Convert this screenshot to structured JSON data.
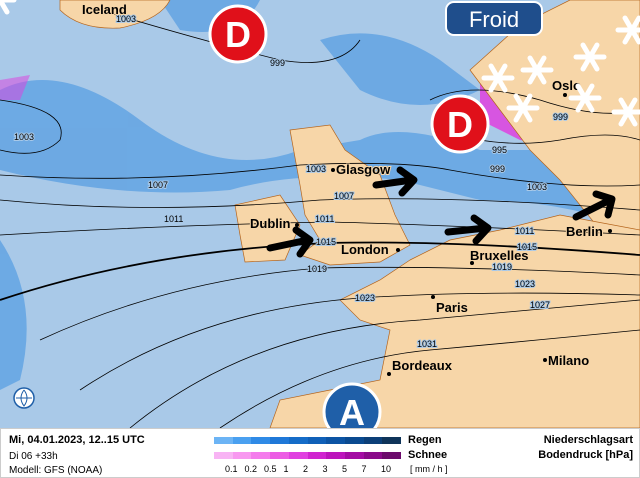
{
  "map": {
    "badge_low": "D",
    "badge_high": "A",
    "froid_label": "Froid",
    "regions": [
      "Iceland"
    ],
    "cities": [
      "Oslo",
      "Glasgow",
      "Dublin",
      "London",
      "Bruxelles",
      "Berlin",
      "Paris",
      "Bordeaux",
      "Milano"
    ],
    "isobar_labels": [
      "1003",
      "999",
      "1003",
      "1007",
      "1011",
      "1003",
      "1007",
      "1011",
      "1015",
      "1019",
      "1023",
      "999",
      "995",
      "999",
      "1003",
      "1011",
      "1015",
      "1019",
      "1023",
      "1027",
      "1031"
    ],
    "colors": {
      "sea": "#a9c9e8",
      "land": "#f7d6a8",
      "rain": "#2f7fd8",
      "snow": "#e040e0",
      "low": "#e0101a",
      "high": "#1f5fa8"
    }
  },
  "legend": {
    "date": "Mi, 04.01.2023, 12..15 UTC",
    "run": "Di 06 +33h",
    "model": "Modell: GFS (NOAA)",
    "rain_label": "Regen",
    "snow_label": "Schnee",
    "unit": "[ mm / h ]",
    "ticks": [
      "0.1",
      "0.2",
      "0.5",
      "1",
      "2",
      "3",
      "5",
      "7",
      "10"
    ],
    "title1": "Niederschlagsart",
    "title2": "Bodendruck [hPa]",
    "rain_colors": [
      "#6cb4f5",
      "#4aa0f0",
      "#2f8ae6",
      "#1f78d8",
      "#156cc8",
      "#1060b8",
      "#0c54a4",
      "#0a4a90",
      "#0c3f78",
      "#0f3459"
    ],
    "snow_colors": [
      "#f8b4f4",
      "#f898f0",
      "#f47cec",
      "#ec5ce4",
      "#e040e0",
      "#d024d0",
      "#bc14bc",
      "#a40ca4",
      "#8a0a8a",
      "#6c0a6c"
    ]
  }
}
